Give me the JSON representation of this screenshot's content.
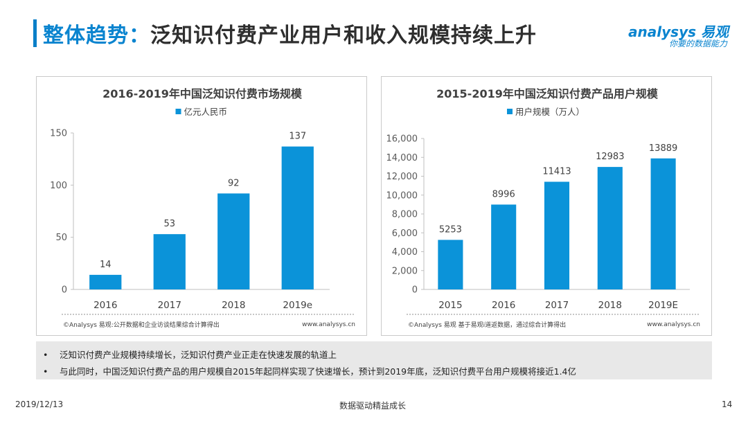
{
  "header": {
    "title_highlight": "整体趋势：",
    "title_rest": "泛知识付费产业用户和收入规模持续上升",
    "logo_main": "analysys 易观",
    "logo_sub": "你要的数据能力"
  },
  "colors": {
    "accent": "#0a84cf",
    "bar": "#0b93d9"
  },
  "chart_data": [
    {
      "type": "bar",
      "title": "2016-2019年中国泛知识付费市场规模",
      "legend": "亿元人民币",
      "categories": [
        "2016",
        "2017",
        "2018",
        "2019e"
      ],
      "values": [
        14,
        53,
        92,
        137
      ],
      "data_labels": [
        "14",
        "53",
        "92",
        "137"
      ],
      "yticks": [
        "0",
        "50",
        "100",
        "150"
      ],
      "ytick_values": [
        0,
        50,
        100,
        150
      ],
      "ylim": [
        0,
        150
      ],
      "source": "©Analysys 易观:公开数据和企业访谈结果综合计算得出",
      "site": "www.analysys.cn"
    },
    {
      "type": "bar",
      "title": "2015-2019年中国泛知识付费产品用户规模",
      "legend": "用户规模（万人）",
      "categories": [
        "2015",
        "2016",
        "2017",
        "2018",
        "2019E"
      ],
      "values": [
        5253,
        8996,
        11413,
        12983,
        13889
      ],
      "data_labels": [
        "5253",
        "8996",
        "11413",
        "12983",
        "13889"
      ],
      "yticks": [
        "0",
        "2,000",
        "4,000",
        "6,000",
        "8,000",
        "10,000",
        "12,000",
        "14,000",
        "16,000"
      ],
      "ytick_values": [
        0,
        2000,
        4000,
        6000,
        8000,
        10000,
        12000,
        14000,
        16000
      ],
      "ylim": [
        0,
        16000
      ],
      "source": "©Analysys 易观 基于易观i道返数据，通过综合计算得出",
      "site": "www.analysys.cn"
    }
  ],
  "notes": [
    "泛知识付费产业规模持续增长，泛知识付费产业正走在快速发展的轨道上",
    "与此同时，中国泛知识付费产品的用户规模自2015年起同样实现了快速增长，预计到2019年底，泛知识付费平台用户规模将接近1.4亿"
  ],
  "footer": {
    "date": "2019/12/13",
    "slogan": "数据驱动精益成长",
    "page": "14"
  }
}
